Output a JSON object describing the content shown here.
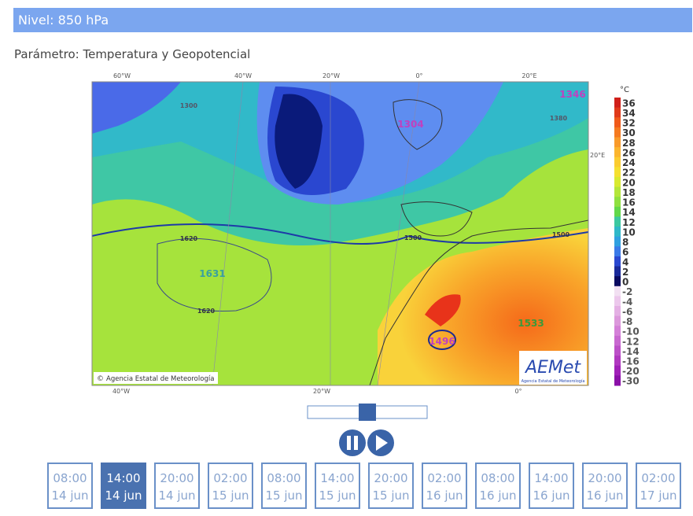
{
  "header": {
    "title": "Nivel: 850 hPa"
  },
  "parameter": "Parámetro: Temperatura y Geopotencial",
  "map": {
    "top_labels": [
      "60°W",
      "40°W",
      "20°W",
      "0°",
      "20°E"
    ],
    "bottom_labels": [
      "40°W",
      "20°W",
      "0°"
    ],
    "right_label": "20°E",
    "contour_labels": [
      "1346",
      "1304",
      "1380",
      "1300",
      "1620",
      "1631",
      "1620",
      "1500",
      "1533",
      "1496",
      "1500"
    ],
    "credit": "Agencia Estatal de Meteorología",
    "logo": "AEMet",
    "logo_caption": "Agencia Estatal de Meteorología"
  },
  "legend": {
    "unit": "°C",
    "labels": [
      "36",
      "34",
      "32",
      "30",
      "28",
      "26",
      "24",
      "22",
      "20",
      "18",
      "16",
      "14",
      "12",
      "10",
      "8",
      "6",
      "4",
      "2",
      "0",
      "-2",
      "-4",
      "-6",
      "-8",
      "-10",
      "-12",
      "-14",
      "-16",
      "-20",
      "-30"
    ]
  },
  "times": [
    {
      "time": "08:00",
      "date": "14 jun"
    },
    {
      "time": "14:00",
      "date": "14 jun"
    },
    {
      "time": "20:00",
      "date": "14 jun"
    },
    {
      "time": "02:00",
      "date": "15 jun"
    },
    {
      "time": "08:00",
      "date": "15 jun"
    },
    {
      "time": "14:00",
      "date": "15 jun"
    },
    {
      "time": "20:00",
      "date": "15 jun"
    },
    {
      "time": "02:00",
      "date": "16 jun"
    },
    {
      "time": "08:00",
      "date": "16 jun"
    },
    {
      "time": "14:00",
      "date": "16 jun"
    },
    {
      "time": "20:00",
      "date": "16 jun"
    },
    {
      "time": "02:00",
      "date": "17 jun"
    }
  ]
}
